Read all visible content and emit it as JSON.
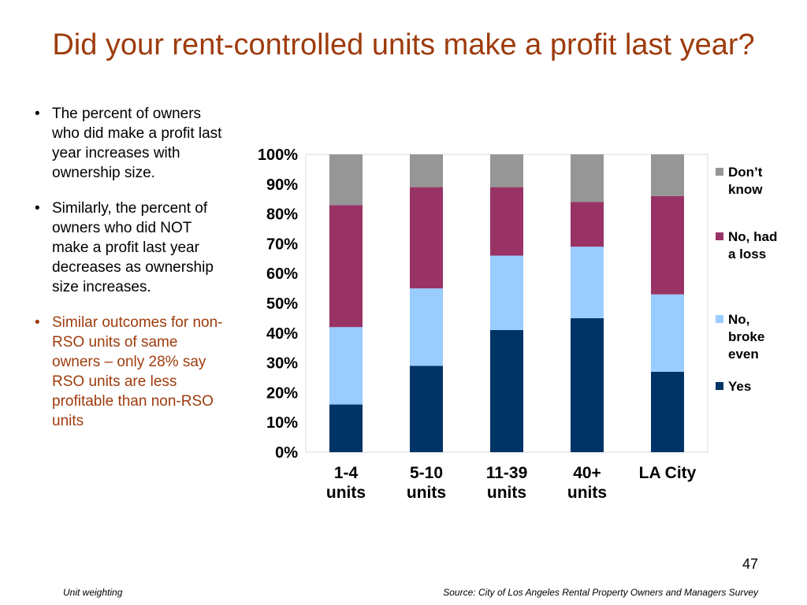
{
  "slide": {
    "title": "Did your rent-controlled units make a profit last year?",
    "bullets": [
      {
        "text": "The percent of owners who did make a profit last year increases with ownership size.",
        "accent": false
      },
      {
        "text": "Similarly, the percent of owners who did NOT make a profit last year decreases as ownership size increases.",
        "accent": false
      },
      {
        "text": "Similar outcomes for non-RSO units of same owners – only 28% say RSO units are less profitable than non-RSO units",
        "accent": true
      }
    ],
    "bullet_glyph": "•",
    "page_number": "47",
    "footer_left": "Unit weighting",
    "footer_right": "Source: City of Los Angeles Rental Property Owners and Managers Survey"
  },
  "colors": {
    "title": "#9e3b0c",
    "accent_text": "#9e3b0c",
    "yes": "#003366",
    "broke_even": "#99ccff",
    "loss": "#993366",
    "dont_know": "#969696"
  },
  "chart_data": {
    "type": "bar",
    "stacked": true,
    "title": "",
    "xlabel": "",
    "ylabel": "",
    "ylim": [
      0,
      100
    ],
    "y_ticks": [
      "0%",
      "10%",
      "20%",
      "30%",
      "40%",
      "50%",
      "60%",
      "70%",
      "80%",
      "90%",
      "100%"
    ],
    "grid": false,
    "legend_position": "right",
    "categories": [
      [
        "1-4",
        "units"
      ],
      [
        "5-10",
        "units"
      ],
      [
        "11-39",
        "units"
      ],
      [
        "40+",
        "units"
      ],
      [
        "LA City"
      ]
    ],
    "series": [
      {
        "name": "Yes",
        "color": "#003366",
        "values": [
          16,
          29,
          41,
          45,
          27
        ]
      },
      {
        "name": "No, broke even",
        "color": "#99ccff",
        "values": [
          26,
          26,
          25,
          24,
          26
        ]
      },
      {
        "name": "No, had a loss",
        "color": "#993366",
        "values": [
          41,
          34,
          23,
          15,
          33
        ]
      },
      {
        "name": "Don’t know",
        "color": "#969696",
        "values": [
          17,
          11,
          11,
          16,
          14
        ]
      }
    ],
    "legend_order": [
      3,
      2,
      1,
      0
    ]
  }
}
